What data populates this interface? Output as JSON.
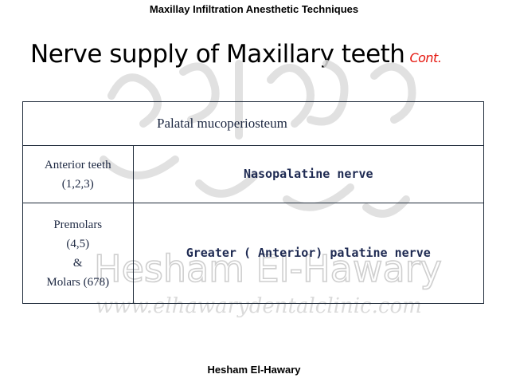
{
  "header": {
    "text": "Maxillay Infiltration Anesthetic Techniques"
  },
  "title": {
    "main": "Nerve supply of Maxillary teeth",
    "cont": "Cont."
  },
  "watermark": {
    "name": "Hesham El-Hawary",
    "url": "www.elhawarydentalclinic.com",
    "color": "#c8c8c8"
  },
  "table": {
    "header": "Palatal mucoperiosteum",
    "rows": [
      {
        "teeth_lines": [
          "Anterior teeth",
          "(1,2,3)"
        ],
        "nerve": "Nasopalatine nerve"
      },
      {
        "teeth_lines": [
          "Premolars",
          "(4,5)",
          "&",
          "Molars (678)"
        ],
        "nerve": "Greater ( Anterior) palatine nerve"
      }
    ]
  },
  "footer": {
    "text": "Hesham El-Hawary"
  },
  "colors": {
    "accent": "#e5170f",
    "text": "#1f2a44",
    "border": "#1f2b3a"
  }
}
